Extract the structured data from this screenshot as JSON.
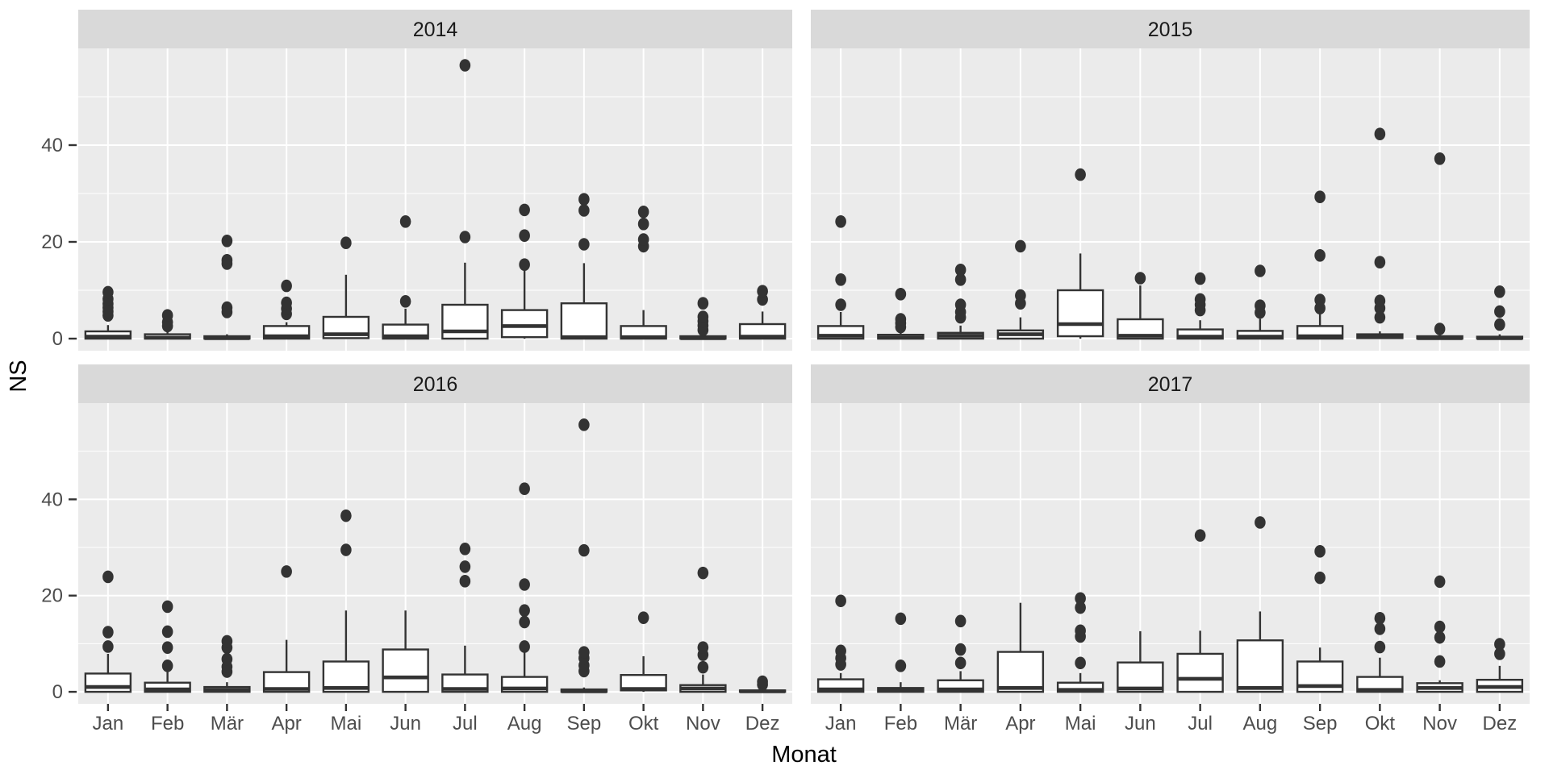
{
  "figure": {
    "kind": "faceted boxplot (ggplot2 style)",
    "background": "#ffffff"
  },
  "axes": {
    "y_label": "NS",
    "x_label": "Monat",
    "y_ticks": [
      0,
      20,
      40
    ],
    "y_minor_gridlines": [
      10,
      30,
      50
    ],
    "y_range": [
      -2.5,
      60
    ],
    "x_categories": [
      "Jan",
      "Feb",
      "Mär",
      "Apr",
      "Mai",
      "Jun",
      "Jul",
      "Aug",
      "Sep",
      "Okt",
      "Nov",
      "Dez"
    ]
  },
  "colors": {
    "panel_bg": "#ebebeb",
    "strip_bg": "#d9d9d9",
    "gridline": "#ffffff",
    "box_stroke": "#333333",
    "box_fill": "#ffffff",
    "outlier_fill": "#333333",
    "tick_text": "#4d4d4d",
    "strip_text": "#1a1a1a",
    "axis_title_text": "#000000",
    "tick_mark": "#333333"
  },
  "chart_data": {
    "type": "boxplot",
    "facet_variable": "Jahr",
    "x_variable": "Monat",
    "y_variable": "NS",
    "categories": [
      "Jan",
      "Feb",
      "Mär",
      "Apr",
      "Mai",
      "Jun",
      "Jul",
      "Aug",
      "Sep",
      "Okt",
      "Nov",
      "Dez"
    ],
    "facets": [
      {
        "title": "2014",
        "boxes": [
          {
            "month": "Jan",
            "q1": 0,
            "median": 0.4,
            "q3": 1.5,
            "whisker_low": 0,
            "whisker_high": 2.8,
            "outliers": [
              4.8,
              5.6,
              6.4,
              7.2,
              8.2,
              9.6
            ]
          },
          {
            "month": "Feb",
            "q1": 0,
            "median": 0.2,
            "q3": 0.9,
            "whisker_low": 0,
            "whisker_high": 1.8,
            "outliers": [
              2.6,
              3.4,
              4.8
            ]
          },
          {
            "month": "Mär",
            "q1": 0,
            "median": 0.1,
            "q3": 0.5,
            "whisker_low": 0,
            "whisker_high": 0.9,
            "outliers": [
              5.5,
              6.4,
              15.5,
              16.2,
              20.2
            ]
          },
          {
            "month": "Apr",
            "q1": 0,
            "median": 0.5,
            "q3": 2.6,
            "whisker_low": 0,
            "whisker_high": 3.4,
            "outliers": [
              5.1,
              6.2,
              7.4,
              10.9
            ]
          },
          {
            "month": "Mai",
            "q1": 0.1,
            "median": 0.9,
            "q3": 4.5,
            "whisker_low": 0,
            "whisker_high": 13.2,
            "outliers": [
              19.8
            ]
          },
          {
            "month": "Jun",
            "q1": 0,
            "median": 0.5,
            "q3": 2.9,
            "whisker_low": 0,
            "whisker_high": 6.2,
            "outliers": [
              7.7,
              24.2
            ]
          },
          {
            "month": "Jul",
            "q1": 0,
            "median": 1.5,
            "q3": 7.0,
            "whisker_low": 0,
            "whisker_high": 15.7,
            "outliers": [
              21.0,
              56.5
            ]
          },
          {
            "month": "Aug",
            "q1": 0.3,
            "median": 2.6,
            "q3": 5.9,
            "whisker_low": 0,
            "whisker_high": 14.7,
            "outliers": [
              15.3,
              21.3,
              26.6
            ]
          },
          {
            "month": "Sep",
            "q1": 0,
            "median": 0.3,
            "q3": 7.3,
            "whisker_low": 0,
            "whisker_high": 15.6,
            "outliers": [
              19.5,
              26.5,
              28.8
            ]
          },
          {
            "month": "Okt",
            "q1": 0,
            "median": 0.3,
            "q3": 2.6,
            "whisker_low": 0,
            "whisker_high": 5.9,
            "outliers": [
              19.1,
              20.5,
              23.7,
              26.2
            ]
          },
          {
            "month": "Nov",
            "q1": 0,
            "median": 0.1,
            "q3": 0.5,
            "whisker_low": 0,
            "whisker_high": 0.9,
            "outliers": [
              1.8,
              2.7,
              3.6,
              4.5,
              7.3
            ]
          },
          {
            "month": "Dez",
            "q1": 0,
            "median": 0.4,
            "q3": 3.0,
            "whisker_low": 0,
            "whisker_high": 5.6,
            "outliers": [
              8.1,
              9.8
            ]
          }
        ]
      },
      {
        "title": "2015",
        "boxes": [
          {
            "month": "Jan",
            "q1": 0,
            "median": 0.6,
            "q3": 2.6,
            "whisker_low": 0,
            "whisker_high": 5.5,
            "outliers": [
              7.0,
              12.2,
              24.2
            ]
          },
          {
            "month": "Feb",
            "q1": 0,
            "median": 0.2,
            "q3": 0.8,
            "whisker_low": 0,
            "whisker_high": 1.5,
            "outliers": [
              2.4,
              3.2,
              4.0,
              9.2
            ]
          },
          {
            "month": "Mär",
            "q1": 0,
            "median": 0.6,
            "q3": 1.2,
            "whisker_low": 0,
            "whisker_high": 2.7,
            "outliers": [
              4.4,
              5.5,
              7.0,
              12.2,
              14.2
            ]
          },
          {
            "month": "Apr",
            "q1": 0,
            "median": 0.9,
            "q3": 1.7,
            "whisker_low": 0,
            "whisker_high": 4.4,
            "outliers": [
              7.3,
              8.9,
              19.1
            ]
          },
          {
            "month": "Mai",
            "q1": 0.5,
            "median": 3.0,
            "q3": 10.0,
            "whisker_low": 0,
            "whisker_high": 17.6,
            "outliers": [
              33.9
            ]
          },
          {
            "month": "Jun",
            "q1": 0,
            "median": 0.6,
            "q3": 4.0,
            "whisker_low": 0,
            "whisker_high": 11.0,
            "outliers": [
              12.5
            ]
          },
          {
            "month": "Jul",
            "q1": 0,
            "median": 0.4,
            "q3": 1.9,
            "whisker_low": 0,
            "whisker_high": 3.8,
            "outliers": [
              5.9,
              7.0,
              8.1,
              12.4
            ]
          },
          {
            "month": "Aug",
            "q1": 0,
            "median": 0.4,
            "q3": 1.6,
            "whisker_low": 0,
            "whisker_high": 4.1,
            "outliers": [
              5.4,
              6.8,
              14.0
            ]
          },
          {
            "month": "Sep",
            "q1": 0,
            "median": 0.5,
            "q3": 2.6,
            "whisker_low": 0,
            "whisker_high": 5.7,
            "outliers": [
              6.3,
              8.0,
              17.2,
              29.3
            ]
          },
          {
            "month": "Okt",
            "q1": 0.1,
            "median": 0.5,
            "q3": 0.9,
            "whisker_low": 0,
            "whisker_high": 1.5,
            "outliers": [
              4.4,
              6.3,
              7.8,
              15.8,
              42.3
            ]
          },
          {
            "month": "Nov",
            "q1": 0,
            "median": 0.1,
            "q3": 0.5,
            "whisker_low": 0,
            "whisker_high": 0.9,
            "outliers": [
              2.0,
              37.2
            ]
          },
          {
            "month": "Dez",
            "q1": 0,
            "median": 0.1,
            "q3": 0.4,
            "whisker_low": 0,
            "whisker_high": 0.9,
            "outliers": [
              2.9,
              5.6,
              9.7
            ]
          }
        ]
      },
      {
        "title": "2016",
        "boxes": [
          {
            "month": "Jan",
            "q1": 0,
            "median": 1.0,
            "q3": 3.8,
            "whisker_low": 0,
            "whisker_high": 7.9,
            "outliers": [
              9.4,
              12.4,
              23.9
            ]
          },
          {
            "month": "Feb",
            "q1": 0,
            "median": 0.5,
            "q3": 1.9,
            "whisker_low": 0,
            "whisker_high": 4.2,
            "outliers": [
              5.4,
              9.2,
              12.5,
              17.7
            ]
          },
          {
            "month": "Mär",
            "q1": 0,
            "median": 0.4,
            "q3": 1.0,
            "whisker_low": 0,
            "whisker_high": 2.0,
            "outliers": [
              4.2,
              5.2,
              6.8,
              9.2,
              10.5
            ]
          },
          {
            "month": "Apr",
            "q1": 0,
            "median": 0.6,
            "q3": 4.1,
            "whisker_low": 0,
            "whisker_high": 10.8,
            "outliers": [
              25.0
            ]
          },
          {
            "month": "Mai",
            "q1": 0,
            "median": 0.8,
            "q3": 6.3,
            "whisker_low": 0,
            "whisker_high": 16.9,
            "outliers": [
              29.5,
              36.6
            ]
          },
          {
            "month": "Jun",
            "q1": 0,
            "median": 3.0,
            "q3": 8.8,
            "whisker_low": 0,
            "whisker_high": 16.9,
            "outliers": []
          },
          {
            "month": "Jul",
            "q1": 0,
            "median": 0.6,
            "q3": 3.6,
            "whisker_low": 0,
            "whisker_high": 9.6,
            "outliers": [
              23.0,
              26.0,
              29.7
            ]
          },
          {
            "month": "Aug",
            "q1": 0,
            "median": 0.7,
            "q3": 3.1,
            "whisker_low": 0,
            "whisker_high": 8.8,
            "outliers": [
              9.4,
              14.5,
              16.9,
              22.3,
              42.2
            ]
          },
          {
            "month": "Sep",
            "q1": 0,
            "median": 0.1,
            "q3": 0.5,
            "whisker_low": 0,
            "whisker_high": 0.9,
            "outliers": [
              4.3,
              5.5,
              7.0,
              8.2,
              29.4,
              55.5
            ]
          },
          {
            "month": "Okt",
            "q1": 0.3,
            "median": 0.6,
            "q3": 3.5,
            "whisker_low": 0,
            "whisker_high": 7.4,
            "outliers": [
              15.4
            ]
          },
          {
            "month": "Nov",
            "q1": 0,
            "median": 0.7,
            "q3": 1.4,
            "whisker_low": 0,
            "whisker_high": 3.6,
            "outliers": [
              5.1,
              7.7,
              9.2,
              24.7
            ]
          },
          {
            "month": "Dez",
            "q1": 0,
            "median": 0.1,
            "q3": 0.3,
            "whisker_low": 0,
            "whisker_high": 0.7,
            "outliers": [
              1.5,
              2.1
            ]
          }
        ]
      },
      {
        "title": "2017",
        "boxes": [
          {
            "month": "Jan",
            "q1": 0,
            "median": 0.5,
            "q3": 2.6,
            "whisker_low": 0,
            "whisker_high": 3.9,
            "outliers": [
              5.7,
              7.0,
              8.5,
              18.9
            ]
          },
          {
            "month": "Feb",
            "q1": 0,
            "median": 0.4,
            "q3": 0.8,
            "whisker_low": 0,
            "whisker_high": 2.0,
            "outliers": [
              5.4,
              15.2
            ]
          },
          {
            "month": "Mär",
            "q1": 0,
            "median": 0.5,
            "q3": 2.4,
            "whisker_low": 0,
            "whisker_high": 4.3,
            "outliers": [
              6.0,
              8.8,
              14.7
            ]
          },
          {
            "month": "Apr",
            "q1": 0,
            "median": 0.8,
            "q3": 8.3,
            "whisker_low": 0,
            "whisker_high": 18.5,
            "outliers": []
          },
          {
            "month": "Mai",
            "q1": 0,
            "median": 0.4,
            "q3": 1.9,
            "whisker_low": 0,
            "whisker_high": 3.9,
            "outliers": [
              6.0,
              11.5,
              12.7,
              17.5,
              19.4
            ]
          },
          {
            "month": "Jun",
            "q1": 0,
            "median": 0.7,
            "q3": 6.1,
            "whisker_low": 0,
            "whisker_high": 12.6,
            "outliers": []
          },
          {
            "month": "Jul",
            "q1": 0,
            "median": 2.7,
            "q3": 7.9,
            "whisker_low": 0,
            "whisker_high": 12.7,
            "outliers": [
              32.5
            ]
          },
          {
            "month": "Aug",
            "q1": 0,
            "median": 0.8,
            "q3": 10.7,
            "whisker_low": 0,
            "whisker_high": 16.7,
            "outliers": [
              35.2
            ]
          },
          {
            "month": "Sep",
            "q1": 0,
            "median": 1.2,
            "q3": 6.3,
            "whisker_low": 0,
            "whisker_high": 9.2,
            "outliers": [
              23.7,
              29.2
            ]
          },
          {
            "month": "Okt",
            "q1": 0,
            "median": 0.4,
            "q3": 3.1,
            "whisker_low": 0,
            "whisker_high": 7.1,
            "outliers": [
              9.3,
              13.1,
              15.3
            ]
          },
          {
            "month": "Nov",
            "q1": 0,
            "median": 0.8,
            "q3": 1.8,
            "whisker_low": 0,
            "whisker_high": 2.4,
            "outliers": [
              6.3,
              11.3,
              13.5,
              22.9
            ]
          },
          {
            "month": "Dez",
            "q1": 0,
            "median": 1.0,
            "q3": 2.5,
            "whisker_low": 0,
            "whisker_high": 5.4,
            "outliers": [
              7.9,
              9.9
            ]
          }
        ]
      }
    ]
  }
}
